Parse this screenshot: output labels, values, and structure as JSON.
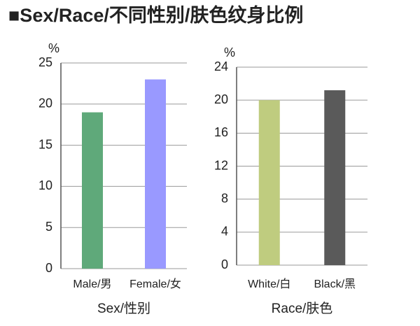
{
  "title": "■Sex/Race/不同性别/肤色纹身比例",
  "chart_data": [
    {
      "type": "bar",
      "y_unit": "%",
      "x_label": "Sex/性别",
      "categories": [
        "Male/男",
        "Female/女"
      ],
      "values": [
        19,
        23
      ],
      "colors": [
        "#5fa97a",
        "#9999ff"
      ],
      "ylim": [
        0,
        25
      ],
      "yticks": [
        0,
        5,
        10,
        15,
        20,
        25
      ],
      "grid": true
    },
    {
      "type": "bar",
      "y_unit": "%",
      "x_label": "Race/肤色",
      "categories": [
        "White/白",
        "Black/黑"
      ],
      "values": [
        20,
        21.2
      ],
      "colors": [
        "#bfcc7f",
        "#5a5a5a"
      ],
      "ylim": [
        0,
        24
      ],
      "yticks": [
        0,
        4,
        8,
        12,
        16,
        20,
        24
      ],
      "grid": true
    }
  ]
}
